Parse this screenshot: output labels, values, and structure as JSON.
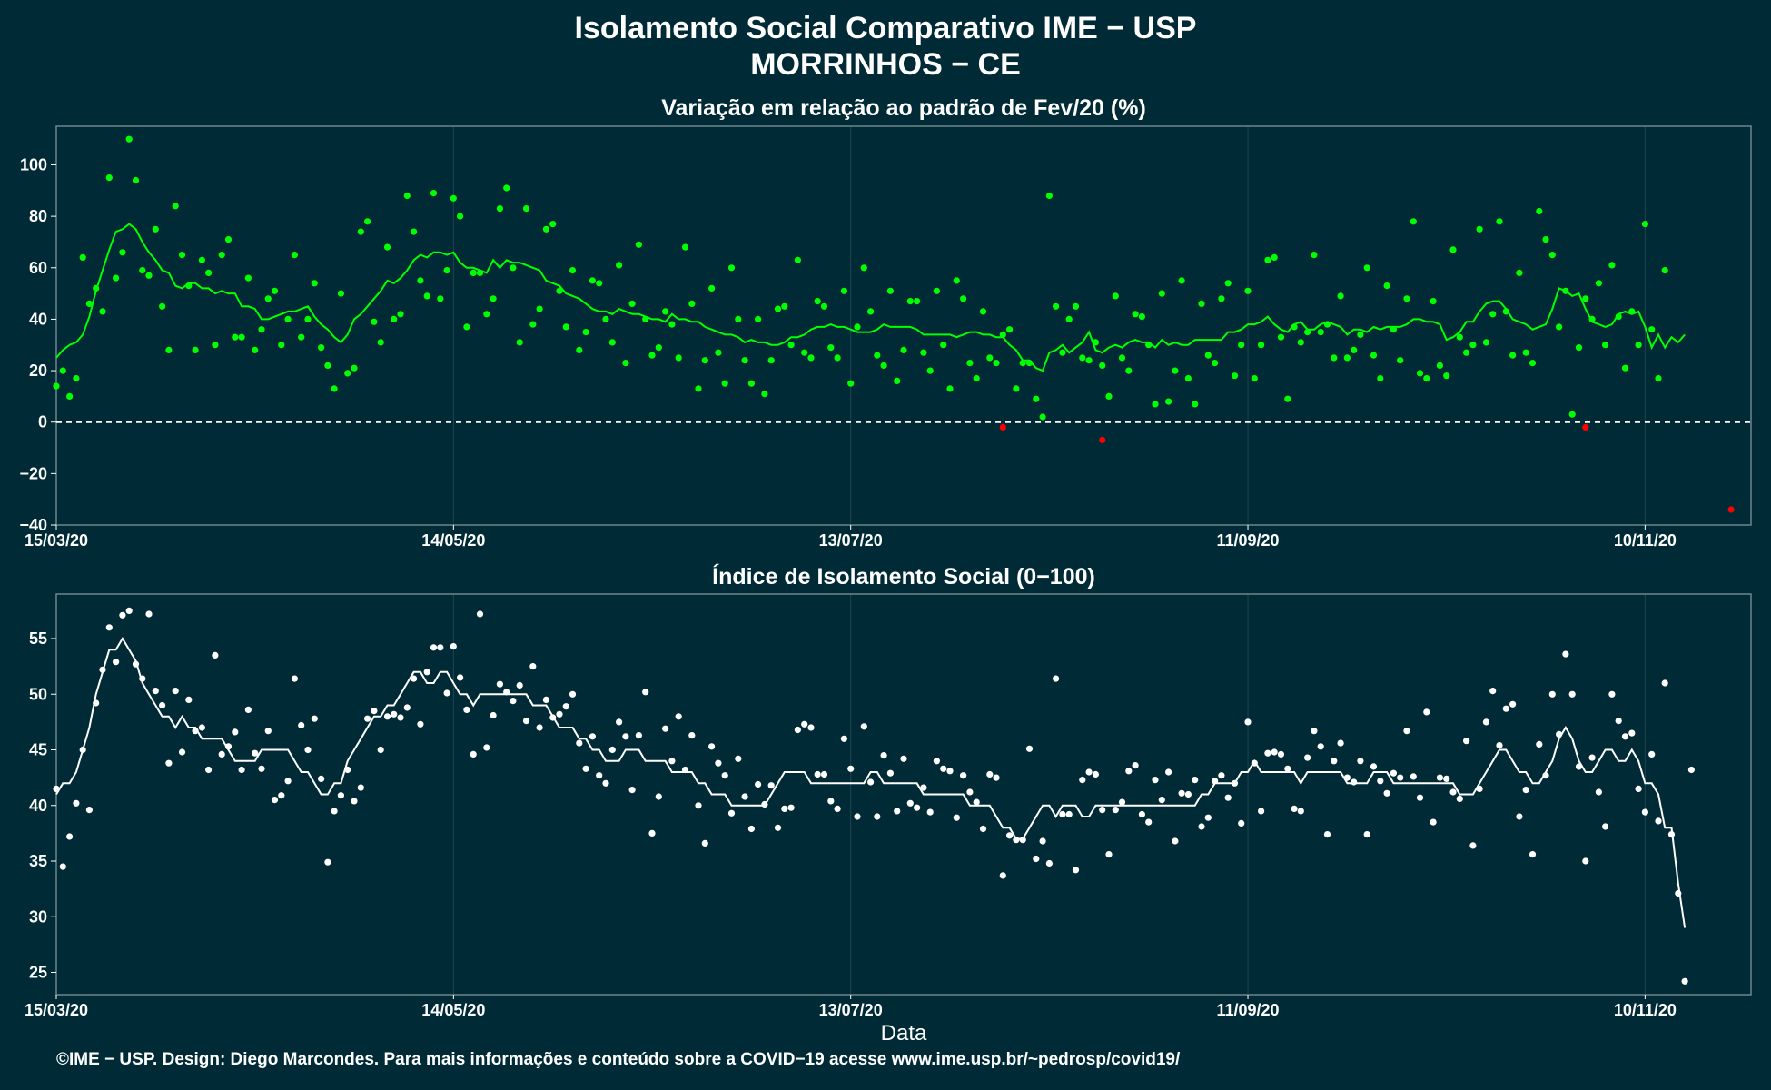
{
  "header": {
    "title": "Isolamento Social Comparativo IME − USP",
    "subtitle": "MORRINHOS − CE"
  },
  "footer": {
    "credit": "©IME − USP. Design: Diego Marcondes. Para mais informações e conteúdo sobre a COVID−19 acesse www.ime.usp.br/~pedrosp/covid19/"
  },
  "colors": {
    "background": "#002b36",
    "positive_points": "#00ff00",
    "negative_points": "#ff0000",
    "moving_average_top": "#00ff00",
    "index_series": "#ffffff",
    "panel_border": "#6d858c"
  },
  "chart_data": [
    {
      "type": "scatter",
      "title": "Variação em relação ao padrão de Fev/20 (%)",
      "xlabel": "",
      "ylabel": "",
      "x_start": "15/03/20",
      "x_end": "26/11/20",
      "x_ticks": [
        "15/03/20",
        "14/05/20",
        "13/07/20",
        "11/09/20",
        "10/11/20"
      ],
      "ylim": [
        -40,
        115
      ],
      "y_ticks": [
        100,
        80,
        60,
        40,
        20,
        0,
        -20,
        -40
      ],
      "reference_line": 0,
      "series": [
        {
          "values": [
            14,
            20,
            10,
            17,
            64,
            46,
            52,
            43,
            95,
            56,
            66,
            110,
            94,
            59,
            57,
            75,
            45,
            28,
            84,
            65,
            53,
            28,
            63,
            58,
            30,
            65,
            71,
            33,
            33,
            56,
            28,
            36,
            48,
            51,
            30,
            40,
            65,
            33,
            40,
            54,
            29,
            22,
            13,
            50,
            19,
            21,
            74,
            78,
            39,
            31,
            68,
            40,
            42,
            88,
            74,
            55,
            49,
            89,
            48,
            59,
            87,
            80,
            37,
            58,
            58,
            42,
            48,
            83,
            91,
            60,
            31,
            83,
            38,
            44,
            75,
            77,
            51,
            37,
            59,
            28,
            35,
            55,
            54,
            40,
            31,
            61,
            23,
            46,
            69,
            40,
            26,
            29,
            43,
            38,
            25,
            68,
            46,
            13,
            24,
            52,
            27,
            15,
            60,
            40,
            24,
            15,
            40,
            11,
            24,
            44,
            45,
            30,
            63,
            27,
            25,
            47,
            45,
            29,
            25,
            51,
            15,
            37,
            60,
            43,
            26,
            22,
            51,
            16,
            28,
            47,
            47,
            27,
            20,
            51,
            30,
            13,
            55,
            48,
            23,
            17,
            43,
            25,
            23,
            34,
            36,
            13,
            23,
            23,
            9,
            2,
            88,
            45,
            27,
            40,
            45,
            25,
            24,
            31,
            22,
            10,
            49,
            25,
            20,
            42,
            41,
            30,
            7,
            50,
            8,
            20,
            55,
            17,
            7,
            46,
            26,
            23,
            48,
            54,
            18,
            30,
            51,
            17,
            30,
            63,
            64,
            33,
            9,
            37,
            31,
            35,
            65,
            35,
            38,
            25,
            49,
            25,
            28,
            34,
            60,
            26,
            17,
            53,
            36,
            24,
            48,
            78,
            19,
            17,
            47,
            22,
            18,
            67,
            33,
            27,
            30,
            75,
            31,
            42,
            78,
            43,
            26,
            58,
            27,
            23,
            82,
            71,
            65,
            37,
            51,
            3,
            29,
            48,
            40,
            54,
            30,
            61,
            41,
            21,
            43,
            30,
            77,
            36,
            17,
            59
          ],
          "negative_points": [
            {
              "day": 143,
              "value": -2
            },
            {
              "day": 158,
              "value": -7
            },
            {
              "day": 231,
              "value": -2
            },
            {
              "day": 253,
              "value": -34
            }
          ]
        },
        {
          "name": "média móvel",
          "values": [
            25,
            28,
            30,
            31,
            34,
            41,
            51,
            59,
            67,
            74,
            75,
            77,
            75,
            70,
            66,
            63,
            59,
            58,
            53,
            52,
            54,
            54,
            52,
            52,
            50,
            51,
            50,
            50,
            45,
            45,
            44,
            40,
            40,
            41,
            42,
            43,
            43,
            44,
            45,
            41,
            38,
            36,
            33,
            31,
            34,
            40,
            42,
            45,
            48,
            51,
            55,
            54,
            56,
            59,
            63,
            65,
            64,
            66,
            66,
            65,
            66,
            62,
            60,
            60,
            59,
            58,
            63,
            60,
            63,
            62,
            62,
            61,
            60,
            59,
            55,
            54,
            53,
            50,
            49,
            48,
            46,
            44,
            43,
            43,
            42,
            44,
            43,
            42,
            42,
            41,
            40,
            40,
            39,
            42,
            40,
            40,
            39,
            39,
            37,
            36,
            35,
            34,
            34,
            33,
            31,
            32,
            31,
            31,
            30,
            30,
            31,
            33,
            33,
            34,
            36,
            37,
            37,
            38,
            37,
            37,
            36,
            35,
            35,
            35,
            36,
            38,
            37,
            37,
            37,
            37,
            36,
            34,
            34,
            34,
            34,
            34,
            33,
            34,
            35,
            35,
            34,
            34,
            33,
            33,
            30,
            28,
            24,
            24,
            21,
            20,
            27,
            28,
            30,
            27,
            29,
            31,
            35,
            28,
            27,
            29,
            30,
            29,
            31,
            32,
            31,
            31,
            29,
            32,
            30,
            31,
            30,
            30,
            32,
            32,
            32,
            32,
            32,
            35,
            35,
            36,
            38,
            38,
            39,
            41,
            38,
            36,
            35,
            38,
            39,
            36,
            36,
            38,
            39,
            38,
            37,
            34,
            36,
            36,
            35,
            37,
            36,
            37,
            37,
            37,
            38,
            40,
            40,
            39,
            39,
            38,
            32,
            33,
            35,
            39,
            39,
            43,
            46,
            47,
            47,
            44,
            40,
            39,
            38,
            36,
            37,
            38,
            44,
            52,
            51,
            49,
            50,
            44,
            39,
            38,
            37,
            38,
            42,
            43,
            42,
            43,
            37,
            29,
            34,
            29,
            33,
            31,
            34
          ]
        }
      ]
    },
    {
      "type": "scatter",
      "title": "Índice de Isolamento Social (0−100)",
      "xlabel": "Data",
      "ylabel": "",
      "x_start": "15/03/20",
      "x_end": "26/11/20",
      "x_ticks": [
        "15/03/20",
        "14/05/20",
        "13/07/20",
        "11/09/20",
        "10/11/20"
      ],
      "ylim": [
        23,
        59
      ],
      "y_ticks": [
        55,
        50,
        45,
        40,
        35,
        30,
        25
      ],
      "series": [
        {
          "values": [
            41.5,
            34.5,
            37.2,
            40.2,
            45,
            39.6,
            49.2,
            52.2,
            56,
            52.9,
            57.1,
            57.5,
            52.7,
            51.4,
            57.2,
            50.3,
            49,
            43.8,
            50.3,
            44.8,
            49.5,
            46.7,
            47,
            43.2,
            53.5,
            44.6,
            45.3,
            46.6,
            43.2,
            48.6,
            44.7,
            43.3,
            46.7,
            40.5,
            40.9,
            42.2,
            51.4,
            47.2,
            45,
            47.8,
            42.4,
            34.9,
            39.5,
            40.9,
            43.2,
            40.4,
            41.6,
            47.8,
            48.5,
            45,
            48,
            48.2,
            47.9,
            48.8,
            51.4,
            47.3,
            52,
            54.2,
            54.2,
            50.1,
            54.3,
            51.5,
            48.6,
            44.6,
            57.2,
            45.2,
            48.1,
            50.9,
            50.2,
            49.4,
            50.8,
            47.6,
            52.5,
            47,
            49.5,
            47.9,
            48.2,
            48.9,
            50,
            45.6,
            43.3,
            46.2,
            42.7,
            42,
            45,
            47.5,
            46.2,
            41.4,
            46.3,
            50.2,
            37.5,
            40.8,
            46.9,
            44,
            48,
            43.2,
            46.3,
            40,
            36.6,
            45.3,
            43.8,
            42.7,
            39.3,
            44.2,
            40.8,
            37.9,
            41.9,
            40.1,
            41.8,
            38,
            39.7,
            39.8,
            46.8,
            47.3,
            47,
            42.8,
            42.8,
            40.4,
            39.7,
            46,
            43.3,
            39,
            47.1,
            42.1,
            39,
            44.5,
            42.9,
            39.5,
            44.2,
            40.2,
            39.8,
            41.6,
            39.4,
            44,
            43.3,
            43.1,
            38.9,
            42.7,
            41.2,
            40.3,
            37.9,
            42.8,
            42.5,
            33.7,
            37.3,
            36.9,
            36.9,
            45.1,
            35.2,
            36.8,
            34.8,
            51.4,
            39.2,
            39.2,
            34.2,
            42.3,
            43,
            42.8,
            39.6,
            35.6,
            39.6,
            40.3,
            43.1,
            43.6,
            39.2,
            38.5,
            42.3,
            40.5,
            43,
            36.8,
            41.1,
            41,
            42.3,
            38.1,
            38.9,
            42.2,
            42.7,
            40.7,
            42,
            38.4,
            47.5,
            43.8,
            39.5,
            44.7,
            44.8,
            44.6,
            43.3,
            39.7,
            39.5,
            44.3,
            46.7,
            45.3,
            37.4,
            44,
            45.6,
            42.5,
            42.1,
            44,
            37.4,
            43.5,
            42.2,
            41.1,
            42.9,
            42.5,
            46.7,
            42.6,
            40.7,
            48.4,
            38.5,
            42.5,
            42.4,
            41.2,
            40.6,
            45.8,
            36.4,
            41.5,
            47.5,
            50.3,
            45.4,
            48.7,
            49.1,
            39,
            41.4,
            35.6,
            45.5,
            42.7,
            50,
            46.4,
            53.6,
            50,
            43.5,
            35,
            44.3,
            41.2,
            38.1,
            50,
            47.6,
            46.2,
            46.5,
            41.5,
            39.4,
            44.6,
            38.6,
            51,
            37.4,
            32.1,
            24.2,
            43.2
          ],
          "negative_points": []
        },
        {
          "name": "média móvel",
          "values": [
            41,
            42,
            42,
            43,
            45,
            47,
            50,
            52,
            54,
            54,
            55,
            54,
            53,
            51,
            50,
            49,
            48,
            48,
            47,
            48,
            47,
            47,
            46,
            46,
            46,
            46,
            45,
            44,
            44,
            44,
            44,
            45,
            45,
            45,
            45,
            45,
            44,
            43,
            43,
            42,
            41,
            41,
            42,
            42,
            44,
            45,
            46,
            47,
            48,
            48,
            49,
            49,
            50,
            51,
            52,
            52,
            51,
            51,
            52,
            52,
            51,
            50,
            50,
            49,
            50,
            50,
            50,
            50,
            50,
            50,
            50,
            50,
            49,
            49,
            49,
            48,
            47,
            47,
            47,
            46,
            46,
            45,
            45,
            44,
            44,
            44,
            45,
            45,
            45,
            44,
            44,
            44,
            44,
            43,
            43,
            43,
            43,
            42,
            42,
            41,
            41,
            41,
            40,
            40,
            40,
            40,
            40,
            40,
            41,
            42,
            43,
            43,
            43,
            43,
            42,
            42,
            42,
            42,
            42,
            42,
            42,
            42,
            42,
            43,
            43,
            42,
            42,
            42,
            42,
            42,
            42,
            41,
            41,
            41,
            41,
            41,
            41,
            41,
            40,
            40,
            40,
            40,
            39,
            38,
            38,
            37,
            37,
            38,
            39,
            40,
            40,
            39,
            40,
            40,
            40,
            39,
            39,
            40,
            40,
            40,
            40,
            40,
            40,
            40,
            40,
            40,
            40,
            40,
            40,
            40,
            40,
            40,
            40,
            41,
            41,
            42,
            42,
            42,
            42,
            43,
            43,
            44,
            43,
            43,
            43,
            43,
            43,
            43,
            42,
            43,
            43,
            43,
            43,
            43,
            43,
            42,
            42,
            42,
            42,
            43,
            43,
            43,
            42,
            42,
            42,
            42,
            42,
            42,
            42,
            42,
            42,
            42,
            41,
            41,
            41,
            42,
            43,
            44,
            45,
            45,
            44,
            43,
            43,
            42,
            42,
            43,
            44,
            46,
            47,
            46,
            44,
            43,
            43,
            44,
            45,
            45,
            44,
            44,
            45,
            44,
            42,
            42,
            41,
            38,
            38,
            33,
            29
          ]
        }
      ]
    }
  ]
}
